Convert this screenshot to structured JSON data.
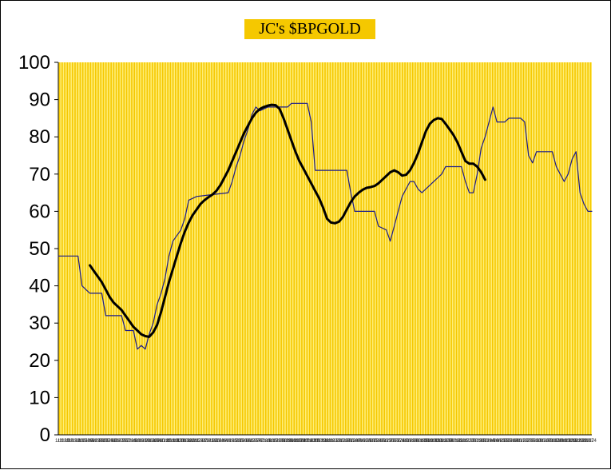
{
  "chart_data": {
    "type": "line",
    "title": "JC's $BPGOLD",
    "xlabel": "",
    "ylabel": "",
    "ylim": [
      0,
      100
    ],
    "yticks": [
      0,
      10,
      20,
      30,
      40,
      50,
      60,
      70,
      80,
      90,
      100
    ],
    "x_tick_labels": [
      "1/11",
      "1/18",
      "1/25",
      "2/1",
      "2/8",
      "2/15",
      "2/22",
      "3/1",
      "3/8",
      "3/15",
      "3/22",
      "3/29",
      "4/5",
      "4/12",
      "4/19",
      "4/26",
      "5/3",
      "5/10",
      "5/17",
      "5/24",
      "5/31",
      "6/7",
      "6/14",
      "6/21",
      "6/28",
      "7/5",
      "7/12",
      "7/19",
      "7/26",
      "8/2",
      "8/9",
      "8/16",
      "8/23",
      "8/30",
      "9/6",
      "9/13",
      "9/20",
      "9/27",
      "10/4",
      "10/11",
      "10/18",
      "10/25",
      "11/1",
      "11/8",
      "11/15",
      "11/22",
      "11/29",
      "12/6",
      "12/13",
      "12/20",
      "12/27",
      "1/3",
      "1/10",
      "1/17",
      "1/24",
      "1/31",
      "2/7",
      "2/14",
      "2/21",
      "2/28",
      "3/7",
      "3/14",
      "3/21",
      "3/28",
      "4/4",
      "4/11",
      "4/18",
      "4/25",
      "5/2",
      "5/9",
      "5/16",
      "5/23",
      "5/30",
      "6/6",
      "6/13",
      "6/20",
      "6/27",
      "7/4",
      "7/11",
      "7/18",
      "7/25",
      "8/1",
      "8/8",
      "8/15",
      "8/22",
      "8/29",
      "9/5",
      "9/12",
      "9/19",
      "9/26",
      "10/3",
      "10/10",
      "10/17",
      "10/24",
      "10/31",
      "11/7",
      "11/14",
      "11/21",
      "11/28",
      "12/5",
      "12/12",
      "12/19",
      "12/26",
      "1/2",
      "1/9",
      "1/16",
      "1/23",
      "1/30",
      "2/6",
      "2/13",
      "2/20",
      "2/27",
      "3/6",
      "3/13",
      "3/20",
      "3/27",
      "4/3",
      "4/10",
      "4/17",
      "4/24",
      "5/1",
      "5/8",
      "5/15",
      "5/22",
      "5/29",
      "6/5",
      "6/12",
      "6/19",
      "6/26",
      "7/3",
      "7/10",
      "7/17",
      "7/24",
      "7/31",
      "8/7",
      "8/14",
      "8/21",
      "8/28",
      "9/4",
      "9/11",
      "9/18",
      "9/25",
      "10/2",
      "10/9",
      "10/16",
      "10/23",
      "10/30",
      "11/6",
      "11/13",
      "11/20",
      "11/27",
      "12/4",
      "12/11",
      "12/18",
      "12/25",
      "1/1",
      "1/8",
      "1/15",
      "1/22",
      "1/29",
      "2/5",
      "2/12",
      "2/19",
      "2/26",
      "3/5",
      "3/12",
      "3/19",
      "3/26",
      "4/2",
      "4/9",
      "4/16",
      "4/23",
      "4/30",
      "5/7",
      "5/14",
      "5/21",
      "5/28",
      "6/4",
      "6/11",
      "6/18",
      "6/25",
      "7/2",
      "7/9",
      "7/16",
      "7/23",
      "7/30",
      "8/6",
      "8/13",
      "8/20",
      "8/27",
      "9/3",
      "9/10",
      "9/17",
      "9/24",
      "10/1",
      "10/8",
      "10/15",
      "10/22",
      "10/29",
      "11/5",
      "11/12",
      "11/19",
      "11/26",
      "12/3",
      "12/10",
      "12/17",
      "12/24"
    ],
    "series": [
      {
        "kind": "raw",
        "color": "#1a1a8c",
        "points": [
          [
            0,
            48
          ],
          [
            5,
            48
          ],
          [
            6,
            40
          ],
          [
            7,
            39
          ],
          [
            8,
            38
          ],
          [
            11,
            38
          ],
          [
            12,
            32
          ],
          [
            16,
            32
          ],
          [
            17,
            28
          ],
          [
            19,
            28
          ],
          [
            20,
            23
          ],
          [
            21,
            24
          ],
          [
            22,
            23
          ],
          [
            23,
            27
          ],
          [
            24,
            30
          ],
          [
            25,
            35
          ],
          [
            26,
            38
          ],
          [
            27,
            42
          ],
          [
            28,
            48
          ],
          [
            29,
            52
          ],
          [
            31,
            55
          ],
          [
            32,
            58
          ],
          [
            33,
            63
          ],
          [
            35,
            64
          ],
          [
            43,
            65
          ],
          [
            44,
            68
          ],
          [
            45,
            72
          ],
          [
            46,
            75
          ],
          [
            47,
            79
          ],
          [
            48,
            82
          ],
          [
            49,
            86
          ],
          [
            50,
            88
          ],
          [
            51,
            87
          ],
          [
            53,
            88
          ],
          [
            58,
            88
          ],
          [
            59,
            89
          ],
          [
            63,
            89
          ],
          [
            64,
            84
          ],
          [
            65,
            71
          ],
          [
            73,
            71
          ],
          [
            74,
            65
          ],
          [
            75,
            60
          ],
          [
            80,
            60
          ],
          [
            81,
            56
          ],
          [
            83,
            55
          ],
          [
            84,
            52
          ],
          [
            85,
            56
          ],
          [
            86,
            60
          ],
          [
            87,
            64
          ],
          [
            88,
            66
          ],
          [
            89,
            68
          ],
          [
            90,
            68
          ],
          [
            91,
            66
          ],
          [
            92,
            65
          ],
          [
            93,
            66
          ],
          [
            94,
            67
          ],
          [
            95,
            68
          ],
          [
            96,
            69
          ],
          [
            97,
            70
          ],
          [
            98,
            72
          ],
          [
            102,
            72
          ],
          [
            103,
            68
          ],
          [
            104,
            65
          ],
          [
            105,
            65
          ],
          [
            106,
            70
          ],
          [
            107,
            77
          ],
          [
            108,
            80
          ],
          [
            109,
            84
          ],
          [
            110,
            88
          ],
          [
            111,
            84
          ],
          [
            113,
            84
          ],
          [
            114,
            85
          ],
          [
            117,
            85
          ],
          [
            118,
            84
          ],
          [
            119,
            75
          ],
          [
            120,
            73
          ],
          [
            121,
            76
          ],
          [
            125,
            76
          ],
          [
            126,
            72
          ],
          [
            127,
            70
          ],
          [
            128,
            68
          ],
          [
            129,
            70
          ],
          [
            130,
            74
          ],
          [
            131,
            76
          ],
          [
            132,
            65
          ],
          [
            133,
            62
          ],
          [
            134,
            60
          ],
          [
            135,
            60
          ]
        ]
      },
      {
        "kind": "smoothed",
        "color": "#000000",
        "points": [
          [
            8,
            45.5
          ],
          [
            9,
            44
          ],
          [
            10,
            42.5
          ],
          [
            11,
            41
          ],
          [
            12,
            39
          ],
          [
            13,
            37
          ],
          [
            14,
            35.5
          ],
          [
            15,
            34.5
          ],
          [
            16,
            33.5
          ],
          [
            17,
            32
          ],
          [
            18,
            30.5
          ],
          [
            19,
            29
          ],
          [
            20,
            28
          ],
          [
            21,
            27
          ],
          [
            22,
            26.5
          ],
          [
            23,
            26.3
          ],
          [
            24,
            27.5
          ],
          [
            25,
            29.5
          ],
          [
            26,
            33
          ],
          [
            27,
            37
          ],
          [
            28,
            41
          ],
          [
            29,
            44.5
          ],
          [
            30,
            48
          ],
          [
            31,
            51.5
          ],
          [
            32,
            54.5
          ],
          [
            33,
            57
          ],
          [
            34,
            59
          ],
          [
            35,
            60.5
          ],
          [
            36,
            62
          ],
          [
            37,
            63
          ],
          [
            38,
            63.8
          ],
          [
            39,
            64.5
          ],
          [
            40,
            65.5
          ],
          [
            41,
            67
          ],
          [
            42,
            69
          ],
          [
            43,
            71
          ],
          [
            44,
            73.5
          ],
          [
            45,
            76
          ],
          [
            46,
            78.5
          ],
          [
            47,
            81
          ],
          [
            48,
            83
          ],
          [
            49,
            85
          ],
          [
            50,
            86.5
          ],
          [
            51,
            87.5
          ],
          [
            52,
            88
          ],
          [
            53,
            88.4
          ],
          [
            54,
            88.6
          ],
          [
            55,
            88.5
          ],
          [
            56,
            87.5
          ],
          [
            57,
            85
          ],
          [
            58,
            82
          ],
          [
            59,
            79
          ],
          [
            60,
            76
          ],
          [
            61,
            73.5
          ],
          [
            62,
            71.5
          ],
          [
            63,
            69.5
          ],
          [
            64,
            67.5
          ],
          [
            65,
            65.5
          ],
          [
            66,
            63.5
          ],
          [
            67,
            61
          ],
          [
            68,
            58
          ],
          [
            69,
            57
          ],
          [
            70,
            56.8
          ],
          [
            71,
            57.2
          ],
          [
            72,
            58.5
          ],
          [
            73,
            60.5
          ],
          [
            74,
            62.5
          ],
          [
            75,
            64
          ],
          [
            76,
            65
          ],
          [
            77,
            65.8
          ],
          [
            78,
            66.3
          ],
          [
            79,
            66.5
          ],
          [
            80,
            66.8
          ],
          [
            81,
            67.5
          ],
          [
            82,
            68.5
          ],
          [
            83,
            69.5
          ],
          [
            84,
            70.5
          ],
          [
            85,
            71
          ],
          [
            86,
            70.5
          ],
          [
            87,
            69.6
          ],
          [
            88,
            69.8
          ],
          [
            89,
            71
          ],
          [
            90,
            73
          ],
          [
            91,
            75.5
          ],
          [
            92,
            78.5
          ],
          [
            93,
            81.5
          ],
          [
            94,
            83.5
          ],
          [
            95,
            84.5
          ],
          [
            96,
            85
          ],
          [
            97,
            84.8
          ],
          [
            98,
            83.5
          ],
          [
            99,
            82
          ],
          [
            100,
            80.5
          ],
          [
            101,
            78.5
          ],
          [
            102,
            76
          ],
          [
            103,
            73.5
          ],
          [
            104,
            72.8
          ],
          [
            105,
            72.8
          ],
          [
            106,
            72
          ],
          [
            107,
            70.5
          ],
          [
            108,
            68.5
          ]
        ]
      }
    ],
    "x_domain": [
      0,
      135
    ],
    "background_color": "#ffee77",
    "stripe_color": "#f5c800",
    "grid": true,
    "legend": "none"
  }
}
